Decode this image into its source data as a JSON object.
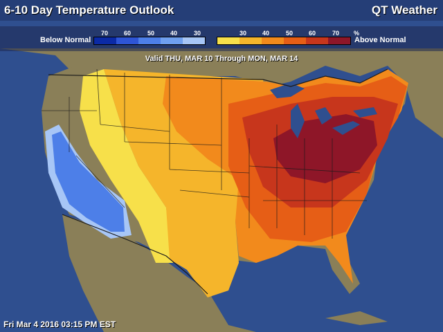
{
  "header": {
    "title": "6-10 Day Temperature Outlook",
    "brand": "QT Weather"
  },
  "legend": {
    "below_label": "Below Normal",
    "above_label": "Above Normal",
    "unit": "%",
    "below_ticks": [
      "70",
      "60",
      "50",
      "40",
      "30"
    ],
    "above_ticks": [
      "30",
      "40",
      "50",
      "60",
      "70"
    ],
    "below_colors": [
      "#0b2aa6",
      "#2e55d6",
      "#4d7fe8",
      "#6fa0ef",
      "#a7c6f6"
    ],
    "above_colors": [
      "#f7e04a",
      "#f5b52b",
      "#f28a1c",
      "#e65e16",
      "#c7361c",
      "#8e1628"
    ]
  },
  "valid_text": "Valid THU, MAR 10 Through MON, MAR 14",
  "footer_text": "Fri Mar 4 2016 03:15 PM EST",
  "colors": {
    "ocean": "#2f4f8f",
    "land": "#8a7f58",
    "border": "#1a1a1a"
  }
}
